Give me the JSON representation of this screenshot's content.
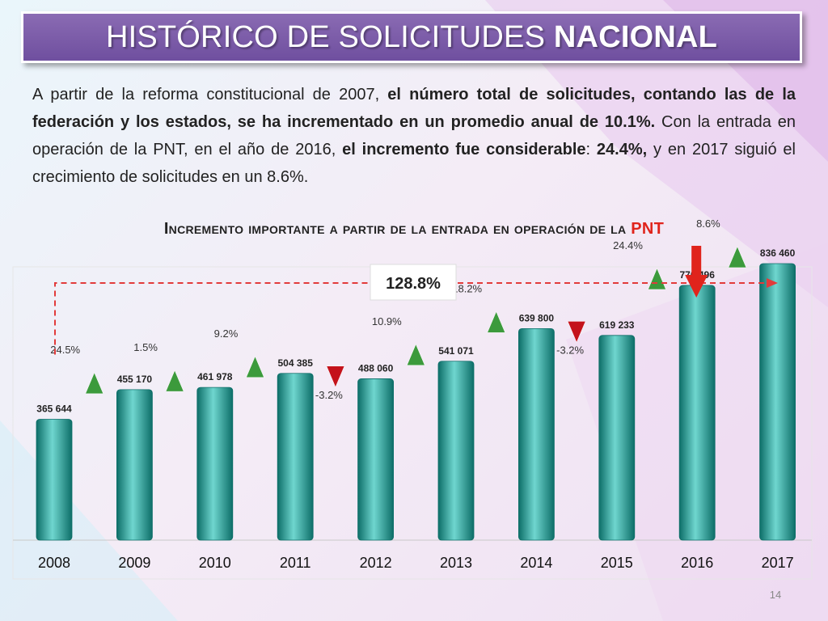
{
  "slide": {
    "title_regular": "HISTÓRICO DE SOLICITUDES ",
    "title_bold": "NACIONAL",
    "intro": {
      "p1": "A partir de la reforma constitucional de 2007, ",
      "b1": "el número total de solicitudes, contando las de la federación y los estados, se ha incrementado en un promedio anual de 10.1%.",
      "p2": " Con la entrada en operación de la PNT, en el año de 2016, ",
      "b2": "el incremento fue considerable",
      "p3": ": ",
      "b3": "24.4%,",
      "p4": " y en 2017 siguió el crecimiento de solicitudes en un 8.6%."
    },
    "subtitle_main": "Incremento importante a partir de la entrada en operación de la ",
    "subtitle_pnt": "PNT",
    "page_number": "14"
  },
  "colors": {
    "bar_main": "#1a9b94",
    "bar_dark": "#0d6e68",
    "bar_light": "#6fd6cf",
    "up_arrow": "#3c9a3c",
    "down_arrow": "#c4121b",
    "dashed_line": "#e23b3b",
    "pnt_arrow": "#e0241c"
  },
  "chart_data": {
    "type": "bar",
    "categories": [
      "2008",
      "2009",
      "2010",
      "2011",
      "2012",
      "2013",
      "2014",
      "2015",
      "2016",
      "2017"
    ],
    "values": [
      365644,
      455170,
      461978,
      504385,
      488060,
      541071,
      639800,
      619233,
      770496,
      836460
    ],
    "value_labels": [
      "365 644",
      "455 170",
      "461 978",
      "504 385",
      "488 060",
      "541 071",
      "639 800",
      "619 233",
      "770 496",
      "836 460"
    ],
    "changes": [
      {
        "label": "24.5%",
        "direction": "up"
      },
      {
        "label": "1.5%",
        "direction": "up"
      },
      {
        "label": "9.2%",
        "direction": "up"
      },
      {
        "label": "-3.2%",
        "direction": "down"
      },
      {
        "label": "10.9%",
        "direction": "up"
      },
      {
        "label": "18.2%",
        "direction": "up"
      },
      {
        "label": "-3.2%",
        "direction": "down"
      },
      {
        "label": "24.4%",
        "direction": "up"
      },
      {
        "label": "8.6%",
        "direction": "up"
      }
    ],
    "total_change_label": "128.8%",
    "ylim": [
      0,
      900000
    ],
    "grid": false,
    "legend": "none"
  }
}
